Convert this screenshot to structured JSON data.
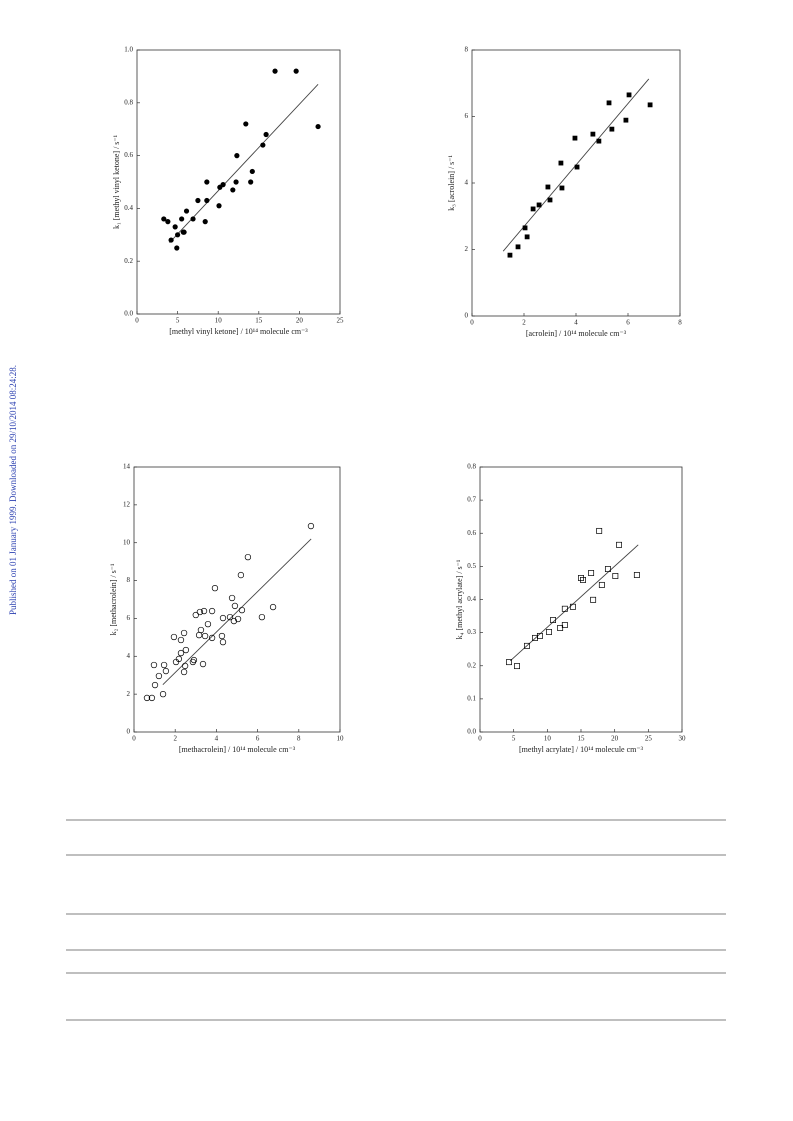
{
  "side_note": "Published on 01 January 1999. Downloaded on 29/10/2014 08:24:28.",
  "chart_data": [
    {
      "type": "scatter",
      "marker": "filled-circle",
      "color": "#000000",
      "xlabel": "[methyl vinyl ketone] / 10¹⁴ molecule cm⁻³",
      "ylabel": "k₁ [methyl vinyl ketone] / s⁻¹",
      "xlim": [
        0,
        25
      ],
      "xticks": [
        0,
        5,
        10,
        15,
        20,
        25
      ],
      "ylim": [
        0,
        1
      ],
      "yticks": [
        {
          "value": 0,
          "label": "0.0"
        },
        0.2,
        0.4,
        0.6,
        0.8,
        {
          "value": 1,
          "label": "1.0"
        }
      ],
      "x": [
        3.3,
        3.8,
        4.2,
        4.7,
        4.9,
        5.0,
        5.5,
        5.7,
        5.8,
        6.1,
        6.9,
        7.5,
        8.4,
        8.6,
        8.6,
        10.1,
        10.2,
        10.6,
        11.8,
        12.3,
        12.2,
        13.4,
        14.0,
        14.2,
        15.5,
        15.9,
        17.0,
        19.6,
        22.3
      ],
      "values": [
        0.36,
        0.35,
        0.28,
        0.33,
        0.25,
        0.3,
        0.36,
        0.31,
        0.31,
        0.39,
        0.36,
        0.43,
        0.35,
        0.5,
        0.43,
        0.41,
        0.48,
        0.49,
        0.47,
        0.6,
        0.5,
        0.72,
        0.5,
        0.54,
        0.64,
        0.68,
        0.92,
        0.92,
        0.71
      ],
      "fit": {
        "x": [
          4,
          22.3
        ],
        "values": [
          0.27,
          0.87
        ]
      }
    },
    {
      "type": "scatter",
      "marker": "filled-square",
      "color": "#000000",
      "xlabel": "[acrolein] / 10¹⁴ molecule cm⁻³",
      "ylabel": "k₃ [acrolein] / s⁻¹",
      "xlim": [
        0,
        8
      ],
      "xticks": [
        0,
        2,
        4,
        6,
        8
      ],
      "ylim": [
        0,
        8
      ],
      "yticks": [
        0,
        2,
        4,
        6,
        8
      ],
      "x": [
        1.46,
        1.77,
        2.04,
        2.12,
        2.35,
        2.58,
        2.92,
        3.0,
        3.42,
        3.46,
        3.96,
        4.04,
        4.65,
        4.88,
        5.27,
        5.38,
        5.92,
        6.04,
        6.85
      ],
      "values": [
        1.83,
        2.08,
        2.65,
        2.38,
        3.22,
        3.34,
        3.88,
        3.49,
        4.6,
        3.85,
        5.35,
        4.48,
        5.47,
        5.26,
        6.41,
        5.62,
        5.89,
        6.65,
        6.35
      ],
      "fit": {
        "x": [
          1.2,
          6.8
        ],
        "values": [
          1.95,
          7.13
        ]
      }
    },
    {
      "type": "scatter",
      "marker": "open-circle",
      "color": "#000000",
      "xlabel": "[methacrolein] / 10¹⁴ molecule cm⁻³",
      "ylabel": "k₂ [methacrolein] / s⁻¹",
      "xlim": [
        0,
        10
      ],
      "xticks": [
        0,
        2,
        4,
        6,
        8,
        10
      ],
      "ylim": [
        0,
        14
      ],
      "yticks": [
        0,
        2,
        4,
        6,
        8,
        10,
        12,
        14
      ],
      "x": [
        0.63,
        0.87,
        0.97,
        1.02,
        1.21,
        1.41,
        1.46,
        1.55,
        1.94,
        2.04,
        2.18,
        2.28,
        2.28,
        2.43,
        2.43,
        2.48,
        2.52,
        2.86,
        2.91,
        3.0,
        3.16,
        3.2,
        3.25,
        3.35,
        3.4,
        3.45,
        3.59,
        3.79,
        3.79,
        3.93,
        4.27,
        4.32,
        4.32,
        4.66,
        4.76,
        4.85,
        4.9,
        5.05,
        5.19,
        5.24,
        5.53,
        6.21,
        6.75,
        8.59
      ],
      "values": [
        1.8,
        1.8,
        3.54,
        2.48,
        2.96,
        2.0,
        3.54,
        3.22,
        5.02,
        3.7,
        3.86,
        4.86,
        4.17,
        5.23,
        3.17,
        3.49,
        4.33,
        3.7,
        3.8,
        6.18,
        5.12,
        6.34,
        5.39,
        3.59,
        6.39,
        5.07,
        5.7,
        6.39,
        4.97,
        7.6,
        5.07,
        4.75,
        6.02,
        6.07,
        7.08,
        5.86,
        6.66,
        5.97,
        8.29,
        6.44,
        9.24,
        6.07,
        6.6,
        10.88
      ],
      "fit": {
        "x": [
          1.4,
          8.6
        ],
        "values": [
          2.5,
          10.2
        ]
      }
    },
    {
      "type": "scatter",
      "marker": "open-square",
      "color": "#000000",
      "xlabel": "[methyl acrylate] / 10¹⁴ molecule cm⁻³",
      "ylabel": "k₄ [methyl acrylate] / s⁻¹",
      "xlim": [
        0,
        30
      ],
      "xticks": [
        0,
        5,
        10,
        15,
        20,
        25,
        30
      ],
      "ylim": [
        0,
        0.8
      ],
      "yticks": [
        {
          "value": 0,
          "label": "0.0"
        },
        0.1,
        0.2,
        0.3,
        0.4,
        0.5,
        0.6,
        0.7,
        0.8
      ],
      "x": [
        4.31,
        5.5,
        6.98,
        8.17,
        8.9,
        10.25,
        10.85,
        11.9,
        12.6,
        12.6,
        13.8,
        15.0,
        15.3,
        16.5,
        16.8,
        17.7,
        18.1,
        19.0,
        20.1,
        20.65,
        23.3
      ],
      "values": [
        0.211,
        0.199,
        0.26,
        0.284,
        0.29,
        0.302,
        0.338,
        0.314,
        0.372,
        0.323,
        0.378,
        0.465,
        0.459,
        0.48,
        0.399,
        0.607,
        0.444,
        0.492,
        0.471,
        0.565,
        0.474
      ],
      "fit": {
        "x": [
          4.5,
          23.5
        ],
        "values": [
          0.215,
          0.565
        ]
      }
    }
  ]
}
